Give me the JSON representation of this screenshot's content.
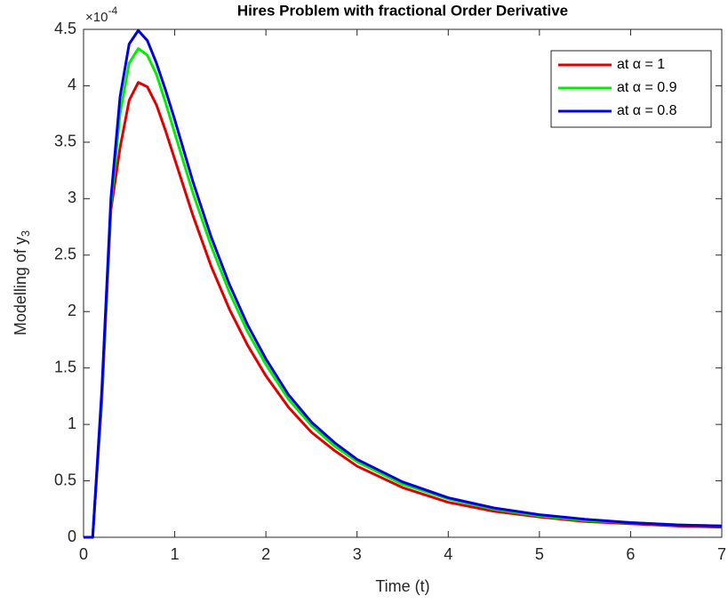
{
  "chart_data": {
    "type": "line",
    "title": "Hires Problem with fractional Order Derivative",
    "x_label": "Time (t)",
    "y_label": "Modelling of y",
    "y_label_subscript": "3",
    "y_exponent_base": "×10",
    "y_exponent": "-4",
    "x": [
      0,
      0.1,
      0.2,
      0.3,
      0.4,
      0.5,
      0.6,
      0.7,
      0.8,
      0.9,
      1,
      1.2,
      1.4,
      1.6,
      1.8,
      2,
      2.25,
      2.5,
      2.75,
      3,
      3.5,
      4,
      4.5,
      5,
      5.5,
      6,
      6.5,
      7
    ],
    "series": [
      {
        "name": "at α = 1",
        "color": "#e00000",
        "values": [
          0,
          0,
          1.2,
          2.9,
          3.45,
          3.87,
          4.03,
          3.99,
          3.83,
          3.6,
          3.35,
          2.85,
          2.4,
          2.02,
          1.7,
          1.43,
          1.15,
          0.93,
          0.77,
          0.63,
          0.44,
          0.31,
          0.23,
          0.18,
          0.14,
          0.12,
          0.1,
          0.09
        ]
      },
      {
        "name": "at α = 0.9",
        "color": "#00ee00",
        "values": [
          0,
          0,
          1.25,
          2.95,
          3.75,
          4.2,
          4.33,
          4.27,
          4.1,
          3.85,
          3.58,
          3.05,
          2.58,
          2.17,
          1.82,
          1.53,
          1.22,
          0.99,
          0.81,
          0.67,
          0.47,
          0.34,
          0.25,
          0.19,
          0.15,
          0.13,
          0.11,
          0.1
        ]
      },
      {
        "name": "at α = 0.8",
        "color": "#0000e6",
        "values": [
          0,
          0,
          1.3,
          3.0,
          3.9,
          4.37,
          4.49,
          4.4,
          4.2,
          3.96,
          3.7,
          3.15,
          2.66,
          2.24,
          1.88,
          1.58,
          1.26,
          1.02,
          0.84,
          0.69,
          0.49,
          0.35,
          0.26,
          0.2,
          0.16,
          0.13,
          0.11,
          0.1
        ]
      }
    ],
    "xlim": [
      0,
      7
    ],
    "xticks": [
      0,
      1,
      2,
      3,
      4,
      5,
      6,
      7
    ],
    "ylim": [
      0,
      4.5
    ],
    "yticks": [
      0,
      0.5,
      1,
      1.5,
      2,
      2.5,
      3,
      3.5,
      4,
      4.5
    ],
    "legend": "upper right"
  }
}
